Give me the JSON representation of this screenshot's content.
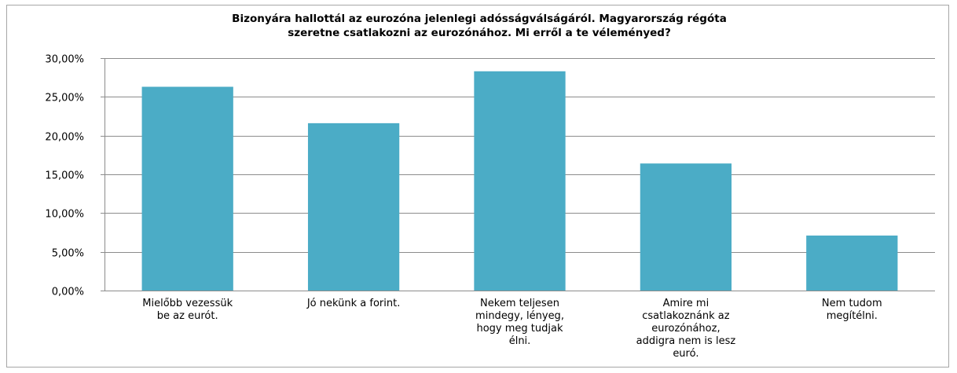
{
  "chart_data": {
    "type": "bar",
    "title_lines": [
      "Bizonyára hallottál az eurozóna jelenlegi adósságválságáról. Magyarország régóta",
      "szeretne csatlakozni az eurozónához. Mi erről a te véleményed?"
    ],
    "categories": [
      "Mielőbb vezessük be az eurót.",
      "Jó nekünk a forint.",
      "Nekem teljesen mindegy, lényeg, hogy meg tudjak élni.",
      "Amire mi csatlakoznánk az eurozónához, addigra nem is lesz euró.",
      "Nem tudom megítélni."
    ],
    "category_label_lines": [
      [
        "Mielőbb vezessük",
        "be az eurót."
      ],
      [
        "Jó nekünk a forint."
      ],
      [
        "Nekem teljesen",
        "mindegy, lényeg,",
        "hogy meg tudjak",
        "élni."
      ],
      [
        "Amire mi",
        "csatlakoznánk az",
        "eurozónához,",
        "addigra nem is lesz",
        "euró."
      ],
      [
        "Nem tudom",
        "megítélni."
      ]
    ],
    "values": [
      26.3,
      21.6,
      28.3,
      16.4,
      7.1
    ],
    "ylim": [
      0,
      30
    ],
    "yticks": [
      0,
      5,
      10,
      15,
      20,
      25,
      30
    ],
    "ytick_labels": [
      "0,00%",
      "5,00%",
      "10,00%",
      "15,00%",
      "20,00%",
      "25,00%",
      "30,00%"
    ],
    "grid": true,
    "legend": "none",
    "bar_color": "#4bacc6"
  }
}
